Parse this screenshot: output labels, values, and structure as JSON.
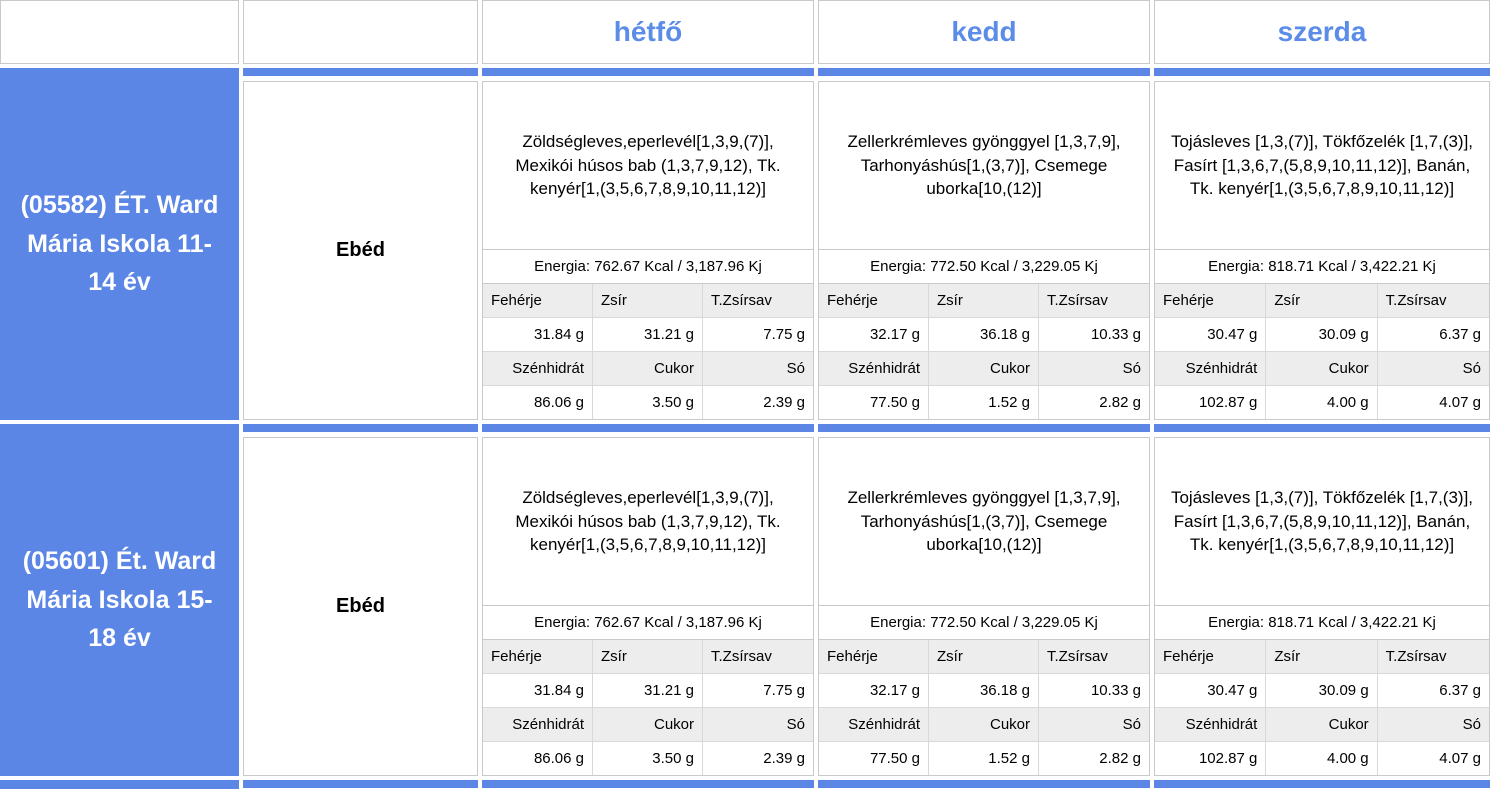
{
  "colors": {
    "accent": "#5b86e5",
    "day_header_text": "#5b8ce8",
    "border": "#c9c9c9",
    "border_light": "#d9d9d9",
    "header_bg": "#ededed",
    "school_text": "#ffffff"
  },
  "header": {
    "days": [
      "hétfő",
      "kedd",
      "szerda"
    ]
  },
  "labels": {
    "row1": [
      "Fehérje",
      "Zsír",
      "T.Zsírsav"
    ],
    "row2": [
      "Szénhidrát",
      "Cukor",
      "Só"
    ]
  },
  "rows": [
    {
      "school": "(05582) ÉT. Ward Mária Iskola 11-14 év",
      "meal": "Ebéd",
      "days": [
        {
          "menu": "Zöldségleves,eperlevél[1,3,9,(7)], Mexikói húsos bab (1,3,7,9,12), Tk. kenyér[1,(3,5,6,7,8,9,10,11,12)]",
          "energy": "Energia: 762.67 Kcal / 3,187.96 Kj",
          "values1": [
            "31.84 g",
            "31.21 g",
            "7.75 g"
          ],
          "values2": [
            "86.06 g",
            "3.50 g",
            "2.39 g"
          ]
        },
        {
          "menu": "Zellerkrémleves gyönggyel [1,3,7,9], Tarhonyáshús[1,(3,7)], Csemege uborka[10,(12)]",
          "energy": "Energia: 772.50 Kcal / 3,229.05 Kj",
          "values1": [
            "32.17 g",
            "36.18 g",
            "10.33 g"
          ],
          "values2": [
            "77.50 g",
            "1.52 g",
            "2.82 g"
          ]
        },
        {
          "menu": "Tojásleves [1,3,(7)], Tökfőzelék [1,7,(3)], Fasírt [1,3,6,7,(5,8,9,10,11,12)], Banán, Tk. kenyér[1,(3,5,6,7,8,9,10,11,12)]",
          "energy": "Energia: 818.71 Kcal / 3,422.21 Kj",
          "values1": [
            "30.47 g",
            "30.09 g",
            "6.37 g"
          ],
          "values2": [
            "102.87 g",
            "4.00 g",
            "4.07 g"
          ]
        }
      ]
    },
    {
      "school": "(05601) Ét. Ward Mária Iskola 15-18 év",
      "meal": "Ebéd",
      "days": [
        {
          "menu": "Zöldségleves,eperlevél[1,3,9,(7)], Mexikói húsos bab (1,3,7,9,12), Tk. kenyér[1,(3,5,6,7,8,9,10,11,12)]",
          "energy": "Energia: 762.67 Kcal / 3,187.96 Kj",
          "values1": [
            "31.84 g",
            "31.21 g",
            "7.75 g"
          ],
          "values2": [
            "86.06 g",
            "3.50 g",
            "2.39 g"
          ]
        },
        {
          "menu": "Zellerkrémleves gyönggyel [1,3,7,9], Tarhonyáshús[1,(3,7)], Csemege uborka[10,(12)]",
          "energy": "Energia: 772.50 Kcal / 3,229.05 Kj",
          "values1": [
            "32.17 g",
            "36.18 g",
            "10.33 g"
          ],
          "values2": [
            "77.50 g",
            "1.52 g",
            "2.82 g"
          ]
        },
        {
          "menu": "Tojásleves [1,3,(7)], Tökfőzelék [1,7,(3)], Fasírt [1,3,6,7,(5,8,9,10,11,12)], Banán, Tk. kenyér[1,(3,5,6,7,8,9,10,11,12)]",
          "energy": "Energia: 818.71 Kcal / 3,422.21 Kj",
          "values1": [
            "30.47 g",
            "30.09 g",
            "6.37 g"
          ],
          "values2": [
            "102.87 g",
            "4.00 g",
            "4.07 g"
          ]
        }
      ]
    }
  ]
}
